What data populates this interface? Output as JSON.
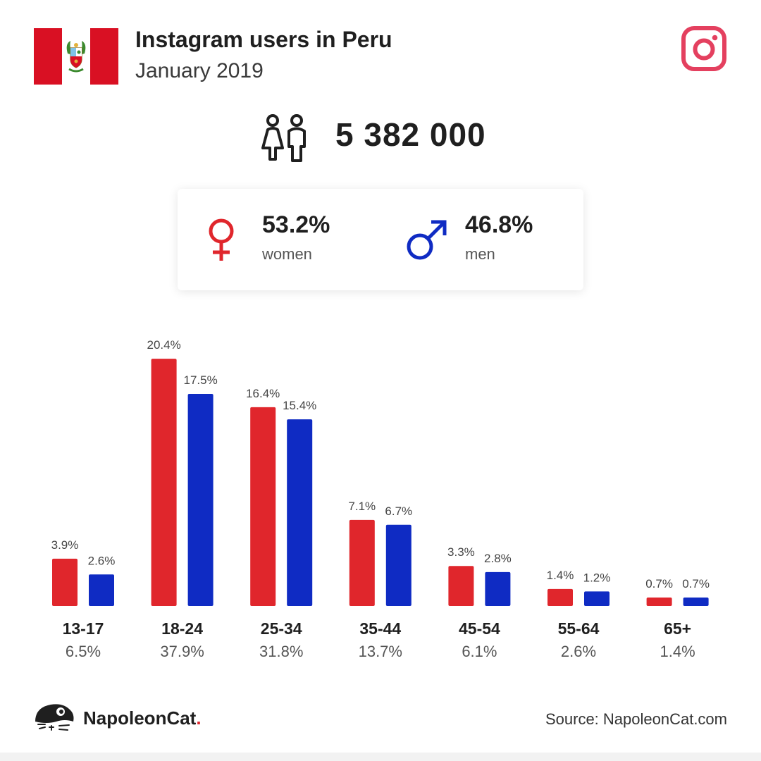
{
  "header": {
    "title": "Instagram users in Peru",
    "subtitle": "January 2019"
  },
  "icons": {
    "flag": "peru-flag-icon",
    "brand_logo": "instagram-logo-icon",
    "users": "users-icon",
    "female": "female-symbol-icon",
    "male": "male-symbol-icon",
    "footer": "napoleoncat-logo-icon"
  },
  "summary": {
    "total_users": "5 382 000"
  },
  "gender": {
    "women_pct": "53.2%",
    "women_label": "women",
    "men_pct": "46.8%",
    "men_label": "men"
  },
  "colors": {
    "women": "#e0262c",
    "men": "#0f2bc3",
    "instagram": "#e4405f",
    "flag_red": "#d91023"
  },
  "chart_data": {
    "type": "bar",
    "categories": [
      "13-17",
      "18-24",
      "25-34",
      "35-44",
      "45-54",
      "55-64",
      "65+"
    ],
    "category_totals": [
      "6.5%",
      "37.9%",
      "31.8%",
      "13.7%",
      "6.1%",
      "2.6%",
      "1.4%"
    ],
    "series": [
      {
        "values": [
          3.9,
          20.4,
          16.4,
          7.1,
          3.3,
          1.4,
          0.7
        ],
        "labels": [
          "3.9%",
          "20.4%",
          "16.4%",
          "7.1%",
          "3.3%",
          "1.4%",
          "0.7%"
        ]
      },
      {
        "values": [
          2.6,
          17.5,
          15.4,
          6.7,
          2.8,
          1.2,
          0.7
        ],
        "labels": [
          "2.6%",
          "17.5%",
          "15.4%",
          "6.7%",
          "2.8%",
          "1.2%",
          "0.7%"
        ]
      }
    ],
    "grid": false,
    "legend": "none"
  },
  "footer": {
    "brand_name": "NapoleonCat",
    "brand_dot": ".",
    "source": "Source: NapoleonCat.com"
  }
}
